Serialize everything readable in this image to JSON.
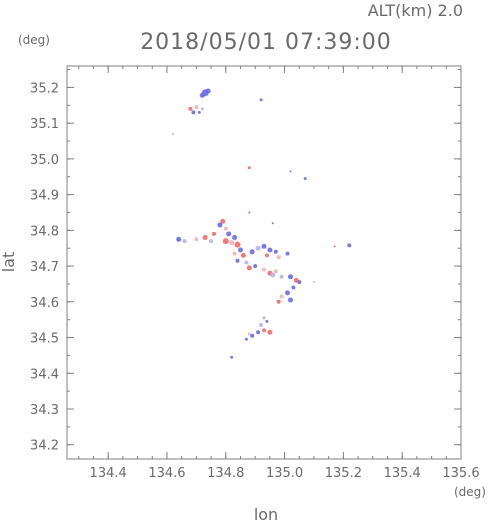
{
  "chart_data": {
    "type": "scatter",
    "header": "ALT(km)  2.0",
    "title": "2018/05/01 07:39:00",
    "xlabel": "lon",
    "ylabel": "lat",
    "xunit": "(deg)",
    "yunit": "(deg)",
    "xlim": [
      134.26,
      135.6
    ],
    "ylim": [
      34.16,
      35.26
    ],
    "xticks": [
      134.4,
      134.6,
      134.8,
      135.0,
      135.2,
      135.4,
      135.6
    ],
    "xtick_labels": [
      "134.4",
      "134.6",
      "134.8",
      "135.0",
      "135.2",
      "135.4",
      "135.6"
    ],
    "yticks": [
      34.2,
      34.3,
      34.4,
      34.5,
      34.6,
      34.7,
      34.8,
      34.9,
      35.0,
      35.1,
      35.2
    ],
    "ytick_labels": [
      "34.2",
      "34.3",
      "34.4",
      "34.5",
      "34.6",
      "34.7",
      "34.8",
      "34.9",
      "35.0",
      "35.1",
      "35.2"
    ],
    "grid": false,
    "colors": {
      "blue": "#6a6ae8",
      "red": "#f06a6a",
      "lightblue": "#b4b4f0",
      "pink": "#f0b4b4",
      "axis": "#808080"
    },
    "points": [
      {
        "x": 134.73,
        "y": 35.185,
        "c": "blue",
        "s": 3.5
      },
      {
        "x": 134.72,
        "y": 35.178,
        "c": "blue",
        "s": 2.5
      },
      {
        "x": 134.74,
        "y": 35.19,
        "c": "blue",
        "s": 2.5
      },
      {
        "x": 134.68,
        "y": 35.14,
        "c": "red",
        "s": 2
      },
      {
        "x": 134.69,
        "y": 35.13,
        "c": "blue",
        "s": 2
      },
      {
        "x": 134.7,
        "y": 35.145,
        "c": "pink",
        "s": 2
      },
      {
        "x": 134.71,
        "y": 35.13,
        "c": "blue",
        "s": 1.5
      },
      {
        "x": 134.72,
        "y": 35.14,
        "c": "lightblue",
        "s": 1.5
      },
      {
        "x": 134.92,
        "y": 35.165,
        "c": "blue",
        "s": 1.5
      },
      {
        "x": 134.62,
        "y": 35.07,
        "c": "lightblue",
        "s": 1
      },
      {
        "x": 134.88,
        "y": 34.975,
        "c": "red",
        "s": 1.5
      },
      {
        "x": 135.02,
        "y": 34.965,
        "c": "blue",
        "s": 1
      },
      {
        "x": 135.07,
        "y": 34.945,
        "c": "blue",
        "s": 1.5
      },
      {
        "x": 134.88,
        "y": 34.85,
        "c": "blue",
        "s": 1
      },
      {
        "x": 134.96,
        "y": 34.82,
        "c": "blue",
        "s": 1
      },
      {
        "x": 134.64,
        "y": 34.775,
        "c": "blue",
        "s": 2.5
      },
      {
        "x": 134.66,
        "y": 34.77,
        "c": "lightblue",
        "s": 2
      },
      {
        "x": 134.7,
        "y": 34.775,
        "c": "pink",
        "s": 2
      },
      {
        "x": 134.73,
        "y": 34.78,
        "c": "red",
        "s": 2.5
      },
      {
        "x": 134.75,
        "y": 34.77,
        "c": "lightblue",
        "s": 2
      },
      {
        "x": 134.76,
        "y": 34.79,
        "c": "red",
        "s": 2
      },
      {
        "x": 134.78,
        "y": 34.815,
        "c": "blue",
        "s": 2.5
      },
      {
        "x": 134.79,
        "y": 34.825,
        "c": "red",
        "s": 2.5
      },
      {
        "x": 134.8,
        "y": 34.805,
        "c": "pink",
        "s": 2
      },
      {
        "x": 134.81,
        "y": 34.79,
        "c": "blue",
        "s": 2.5
      },
      {
        "x": 134.8,
        "y": 34.77,
        "c": "red",
        "s": 3
      },
      {
        "x": 134.82,
        "y": 34.765,
        "c": "pink",
        "s": 2.5
      },
      {
        "x": 134.83,
        "y": 34.78,
        "c": "blue",
        "s": 2.5
      },
      {
        "x": 134.84,
        "y": 34.76,
        "c": "red",
        "s": 3
      },
      {
        "x": 134.85,
        "y": 34.745,
        "c": "blue",
        "s": 2.5
      },
      {
        "x": 134.83,
        "y": 34.735,
        "c": "pink",
        "s": 2
      },
      {
        "x": 134.86,
        "y": 34.73,
        "c": "red",
        "s": 2.5
      },
      {
        "x": 134.84,
        "y": 34.715,
        "c": "blue",
        "s": 2
      },
      {
        "x": 134.87,
        "y": 34.71,
        "c": "lightblue",
        "s": 2
      },
      {
        "x": 134.89,
        "y": 34.74,
        "c": "blue",
        "s": 2.5
      },
      {
        "x": 134.91,
        "y": 34.75,
        "c": "lightblue",
        "s": 2.5
      },
      {
        "x": 134.93,
        "y": 34.755,
        "c": "blue",
        "s": 2.5
      },
      {
        "x": 134.95,
        "y": 34.745,
        "c": "blue",
        "s": 2.5
      },
      {
        "x": 134.94,
        "y": 34.73,
        "c": "red",
        "s": 2
      },
      {
        "x": 134.97,
        "y": 34.74,
        "c": "blue",
        "s": 2
      },
      {
        "x": 134.98,
        "y": 34.725,
        "c": "pink",
        "s": 2
      },
      {
        "x": 135.01,
        "y": 34.735,
        "c": "blue",
        "s": 2
      },
      {
        "x": 134.88,
        "y": 34.695,
        "c": "red",
        "s": 2.5
      },
      {
        "x": 134.9,
        "y": 34.7,
        "c": "blue",
        "s": 2
      },
      {
        "x": 134.93,
        "y": 34.69,
        "c": "pink",
        "s": 2
      },
      {
        "x": 134.95,
        "y": 34.68,
        "c": "red",
        "s": 2.5
      },
      {
        "x": 134.96,
        "y": 34.675,
        "c": "lightblue",
        "s": 2.5
      },
      {
        "x": 134.97,
        "y": 34.685,
        "c": "pink",
        "s": 2
      },
      {
        "x": 134.99,
        "y": 34.67,
        "c": "lightblue",
        "s": 2
      },
      {
        "x": 135.02,
        "y": 34.67,
        "c": "blue",
        "s": 2.5
      },
      {
        "x": 135.04,
        "y": 34.66,
        "c": "red",
        "s": 2.5
      },
      {
        "x": 135.05,
        "y": 34.655,
        "c": "blue",
        "s": 2
      },
      {
        "x": 135.03,
        "y": 34.64,
        "c": "blue",
        "s": 2
      },
      {
        "x": 135.01,
        "y": 34.625,
        "c": "blue",
        "s": 2.5
      },
      {
        "x": 135.02,
        "y": 34.605,
        "c": "blue",
        "s": 2.5
      },
      {
        "x": 134.99,
        "y": 34.615,
        "c": "pink",
        "s": 2
      },
      {
        "x": 134.98,
        "y": 34.6,
        "c": "red",
        "s": 2
      },
      {
        "x": 135.1,
        "y": 34.655,
        "c": "lightblue",
        "s": 1
      },
      {
        "x": 135.17,
        "y": 34.755,
        "c": "red",
        "s": 1
      },
      {
        "x": 135.22,
        "y": 34.758,
        "c": "blue",
        "s": 2
      },
      {
        "x": 134.93,
        "y": 34.555,
        "c": "lightblue",
        "s": 1.5
      },
      {
        "x": 134.94,
        "y": 34.545,
        "c": "blue",
        "s": 1.5
      },
      {
        "x": 134.92,
        "y": 34.535,
        "c": "lightblue",
        "s": 2
      },
      {
        "x": 134.93,
        "y": 34.52,
        "c": "red",
        "s": 2
      },
      {
        "x": 134.95,
        "y": 34.515,
        "c": "red",
        "s": 2.5
      },
      {
        "x": 134.91,
        "y": 34.515,
        "c": "blue",
        "s": 2
      },
      {
        "x": 134.89,
        "y": 34.505,
        "c": "blue",
        "s": 2
      },
      {
        "x": 134.88,
        "y": 34.51,
        "c": "pink",
        "s": 1.5
      },
      {
        "x": 134.87,
        "y": 34.495,
        "c": "blue",
        "s": 1.5
      },
      {
        "x": 134.82,
        "y": 34.445,
        "c": "blue",
        "s": 1.5
      }
    ]
  }
}
